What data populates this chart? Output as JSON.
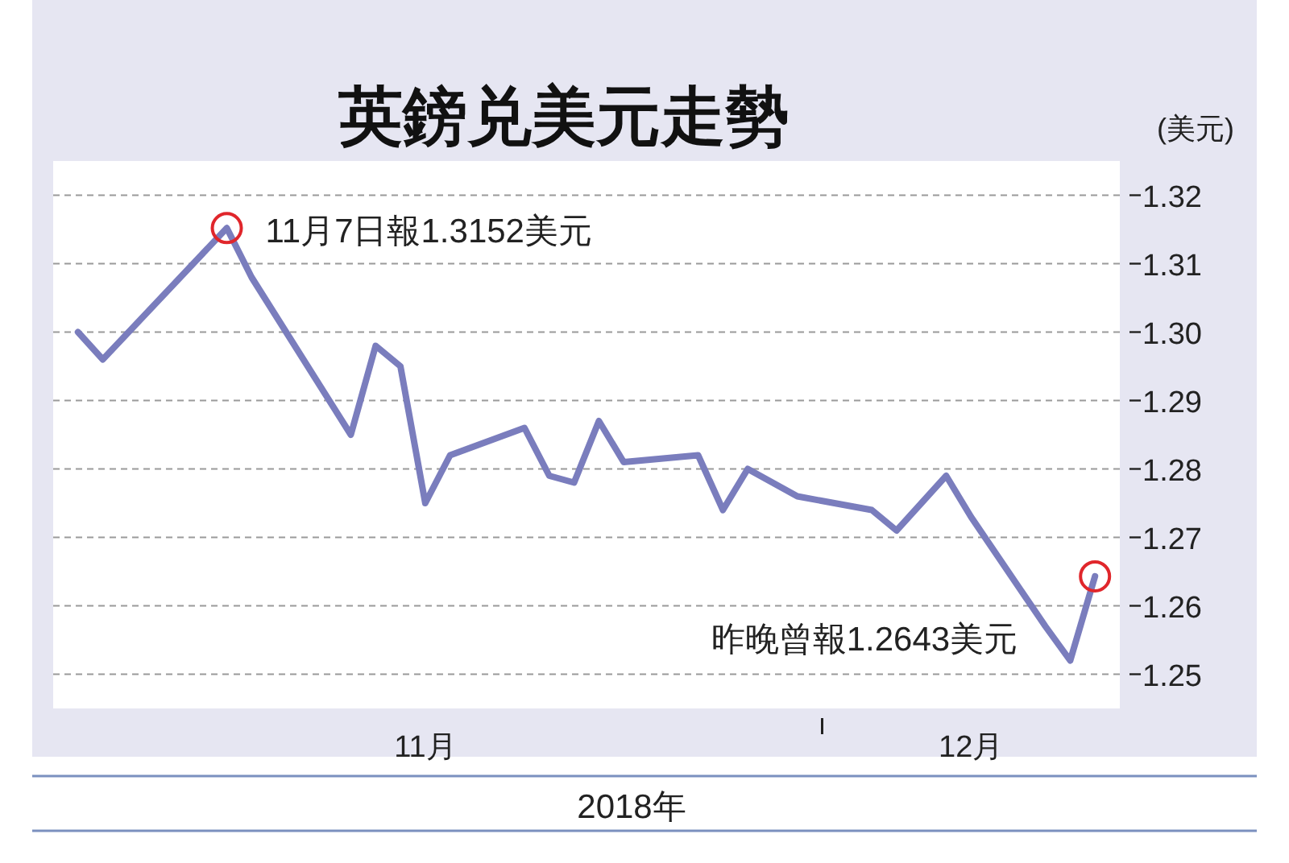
{
  "chart_data": {
    "type": "line",
    "title": "英鎊兑美元走勢",
    "ylabel": "(美元)",
    "xlabel": "2018年",
    "x": [
      "2018-11-01",
      "2018-11-02",
      "2018-11-07",
      "2018-11-08",
      "2018-11-12",
      "2018-11-13",
      "2018-11-14",
      "2018-11-15",
      "2018-11-16",
      "2018-11-19",
      "2018-11-20",
      "2018-11-21",
      "2018-11-22",
      "2018-11-23",
      "2018-11-26",
      "2018-11-27",
      "2018-11-28",
      "2018-11-29",
      "2018-11-30",
      "2018-12-03",
      "2018-12-04",
      "2018-12-05",
      "2018-12-06",
      "2018-12-07",
      "2018-12-10",
      "2018-12-11",
      "2018-12-12"
    ],
    "series": [
      {
        "color": "#7a7dbd",
        "values": [
          1.3,
          1.296,
          1.3152,
          1.308,
          1.285,
          1.298,
          1.295,
          1.275,
          1.282,
          1.286,
          1.279,
          1.278,
          1.287,
          1.281,
          1.282,
          1.274,
          1.28,
          1.278,
          1.276,
          1.274,
          1.271,
          1.275,
          1.279,
          1.273,
          1.257,
          1.252,
          1.2643
        ]
      }
    ],
    "xlim": [
      "2018-10-31",
      "2018-12-13"
    ],
    "xticks": [
      {
        "value": "2018-11-15",
        "label": "11月"
      },
      {
        "value": "2018-12-01",
        "label": null
      },
      {
        "value": "2018-12-07",
        "label": "12月"
      }
    ],
    "ylim": [
      1.245,
      1.325
    ],
    "yticks": [
      {
        "value": 1.25,
        "label": "1.25"
      },
      {
        "value": 1.26,
        "label": "1.26"
      },
      {
        "value": 1.27,
        "label": "1.27"
      },
      {
        "value": 1.28,
        "label": "1.28"
      },
      {
        "value": 1.29,
        "label": "1.29"
      },
      {
        "value": 1.3,
        "label": "1.30"
      },
      {
        "value": 1.31,
        "label": "1.31"
      },
      {
        "value": 1.32,
        "label": "1.32"
      }
    ],
    "grid": "y",
    "annotations": [
      {
        "text": "11月7日報1.3152美元",
        "x": "2018-11-07",
        "y": 1.3152
      },
      {
        "text": "昨晚曾報1.2643美元",
        "x": "2018-12-12",
        "y": 1.2643
      }
    ]
  }
}
